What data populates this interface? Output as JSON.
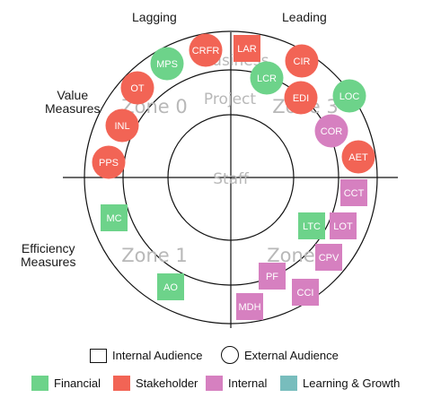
{
  "axis_labels": {
    "lagging": "Lagging",
    "leading": "Leading",
    "value": "Value\nMeasures",
    "efficiency": "Efficiency\nMeasures"
  },
  "zones": {
    "zone0": "Zone 0",
    "zone1": "Zone 1",
    "zone2": "Zone",
    "zone3": "Zone 3"
  },
  "rings": {
    "business": "Business",
    "project": "Project",
    "staff": "Staff"
  },
  "colors": {
    "financial": "#6dd38a",
    "stakeholder": "#f26455",
    "internal": "#d680c0",
    "learning_growth": "#78bdbd"
  },
  "items": [
    {
      "label": "CRFR",
      "shape": "circle",
      "category": "stakeholder"
    },
    {
      "label": "LAR",
      "shape": "square",
      "category": "stakeholder"
    },
    {
      "label": "MPS",
      "shape": "circle",
      "category": "financial"
    },
    {
      "label": "CIR",
      "shape": "circle",
      "category": "stakeholder"
    },
    {
      "label": "LCR",
      "shape": "circle",
      "category": "financial"
    },
    {
      "label": "OT",
      "shape": "circle",
      "category": "stakeholder"
    },
    {
      "label": "EDI",
      "shape": "circle",
      "category": "stakeholder"
    },
    {
      "label": "LOC",
      "shape": "circle",
      "category": "financial"
    },
    {
      "label": "INL",
      "shape": "circle",
      "category": "stakeholder"
    },
    {
      "label": "COR",
      "shape": "circle",
      "category": "internal"
    },
    {
      "label": "PPS",
      "shape": "circle",
      "category": "stakeholder"
    },
    {
      "label": "AET",
      "shape": "circle",
      "category": "stakeholder"
    },
    {
      "label": "CCT",
      "shape": "square",
      "category": "internal"
    },
    {
      "label": "MC",
      "shape": "square",
      "category": "financial"
    },
    {
      "label": "LTC",
      "shape": "square",
      "category": "financial"
    },
    {
      "label": "LOT",
      "shape": "square",
      "category": "internal"
    },
    {
      "label": "CPV",
      "shape": "square",
      "category": "internal"
    },
    {
      "label": "PF",
      "shape": "square",
      "category": "internal"
    },
    {
      "label": "AO",
      "shape": "square",
      "category": "financial"
    },
    {
      "label": "CCI",
      "shape": "square",
      "category": "internal"
    },
    {
      "label": "MDH",
      "shape": "square",
      "category": "internal"
    }
  ],
  "legend": {
    "internal_audience": "Internal Audience",
    "external_audience": "External Audience",
    "financial": "Financial",
    "stakeholder": "Stakeholder",
    "internal": "Internal",
    "learning_growth": "Learning & Growth"
  }
}
